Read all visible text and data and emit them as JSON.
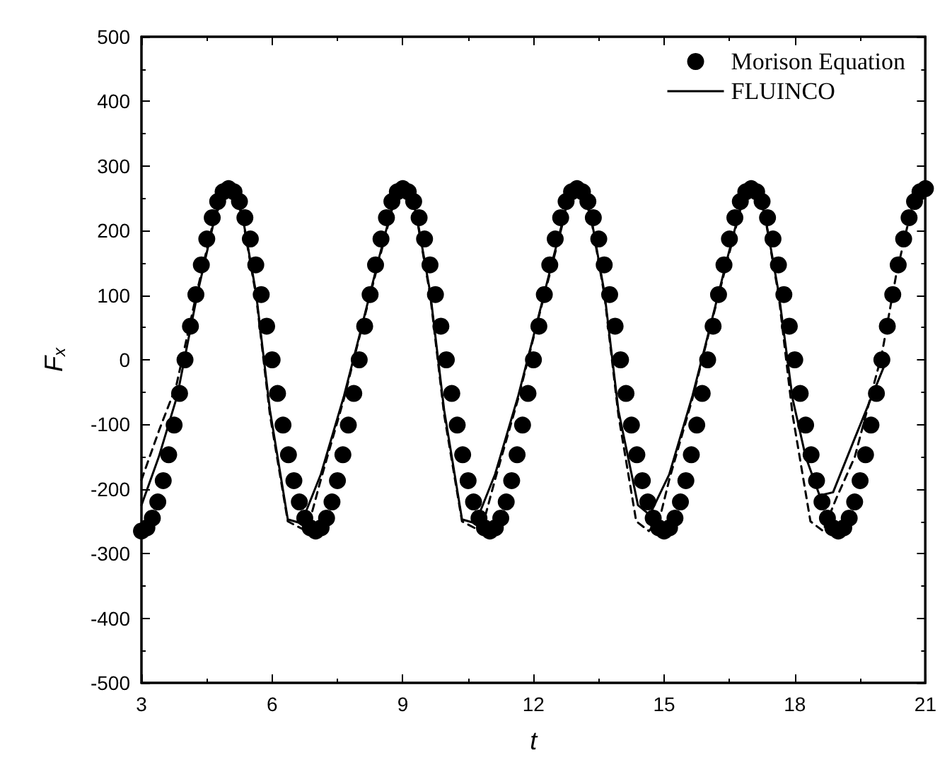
{
  "chart_data": {
    "type": "line",
    "xlabel": "t",
    "ylabel": "F$_{x}$",
    "xlim": [
      3,
      21
    ],
    "xticks": [
      3,
      6,
      9,
      12,
      15,
      18,
      21
    ],
    "ylim": [
      -500,
      500
    ],
    "yticks": [
      -500,
      -400,
      -300,
      -200,
      -100,
      0,
      100,
      200,
      300,
      400,
      500
    ],
    "grid": false,
    "legend": "top right",
    "series": [
      {
        "name": "Morison Equation",
        "type": "scatter",
        "marker": "circle",
        "color": "#000000",
        "x": [
          3,
          3.125,
          3.25,
          3.375,
          3.5,
          3.625,
          3.75,
          3.875,
          4,
          4.125,
          4.25,
          4.375,
          4.5,
          4.625,
          4.75,
          4.875,
          5,
          5.125,
          5.25,
          5.375,
          5.5,
          5.625,
          5.75,
          5.875,
          6,
          6.125,
          6.25,
          6.375,
          6.5,
          6.625,
          6.75,
          6.875,
          7,
          7.125,
          7.25,
          7.375,
          7.5,
          7.625,
          7.75,
          7.875,
          8,
          8.125,
          8.25,
          8.375,
          8.5,
          8.625,
          8.75,
          8.875,
          9,
          9.125,
          9.25,
          9.375,
          9.5,
          9.625,
          9.75,
          9.875,
          10,
          10.125,
          10.25,
          10.375,
          10.5,
          10.625,
          10.75,
          10.875,
          11,
          11.125,
          11.25,
          11.375,
          11.5,
          11.625,
          11.75,
          11.875,
          12,
          12.125,
          12.25,
          12.375,
          12.5,
          12.625,
          12.75,
          12.875,
          13,
          13.125,
          13.25,
          13.375,
          13.5,
          13.625,
          13.75,
          13.875,
          14,
          14.125,
          14.25,
          14.375,
          14.5,
          14.625,
          14.75,
          14.875,
          15,
          15.125,
          15.25,
          15.375,
          15.5,
          15.625,
          15.75,
          15.875,
          16,
          16.125,
          16.25,
          16.375,
          16.5,
          16.625,
          16.75,
          16.875,
          17,
          17.125,
          17.25,
          17.375,
          17.5,
          17.625,
          17.75,
          17.875,
          18,
          18.125,
          18.25,
          18.375,
          18.5,
          18.625,
          18.75,
          18.875,
          19,
          19.125,
          19.25,
          19.375,
          19.5,
          19.625,
          19.75,
          19.875,
          20,
          20.125,
          20.25,
          20.375,
          20.5,
          20.625,
          20.75,
          20.875,
          21
        ],
        "values": [
          -265,
          -260,
          -245,
          -220,
          -187,
          -147,
          -101,
          -52,
          0,
          52,
          101,
          147,
          187,
          220,
          245,
          260,
          265,
          260,
          245,
          220,
          187,
          147,
          101,
          52,
          0,
          -52,
          -101,
          -147,
          -187,
          -220,
          -245,
          -260,
          -265,
          -260,
          -245,
          -220,
          -187,
          -147,
          -101,
          -52,
          0,
          52,
          101,
          147,
          187,
          220,
          245,
          260,
          265,
          260,
          245,
          220,
          187,
          147,
          101,
          52,
          0,
          -52,
          -101,
          -147,
          -187,
          -220,
          -245,
          -260,
          -265,
          -260,
          -245,
          -220,
          -187,
          -147,
          -101,
          -52,
          0,
          52,
          101,
          147,
          187,
          220,
          245,
          260,
          265,
          260,
          245,
          220,
          187,
          147,
          101,
          52,
          0,
          -52,
          -101,
          -147,
          -187,
          -220,
          -245,
          -260,
          -265,
          -260,
          -245,
          -220,
          -187,
          -147,
          -101,
          -52,
          0,
          52,
          101,
          147,
          187,
          220,
          245,
          260,
          265,
          260,
          245,
          220,
          187,
          147,
          101,
          52,
          0,
          -52,
          -101,
          -147,
          -187,
          -220,
          -245,
          -260,
          -265,
          -260,
          -245,
          -220,
          -187,
          -147,
          -101,
          -52,
          0,
          52,
          101,
          147,
          187,
          220,
          245,
          260,
          265
        ]
      },
      {
        "name": "FLUINCO",
        "marker": "none",
        "line_style": "solid",
        "color": "#000000",
        "x": [
          3,
          3.4,
          3.82,
          4.29,
          4.7,
          5,
          5.3,
          5.63,
          5.95,
          6.36,
          6.67,
          7.12,
          7.65,
          8.06,
          8.44,
          8.75,
          9,
          9.3,
          9.63,
          9.95,
          10.36,
          10.67,
          11.12,
          11.65,
          12.06,
          12.44,
          12.75,
          13,
          13.3,
          13.63,
          13.95,
          14.4,
          14.67,
          15.12,
          15.65,
          16.06,
          16.44,
          16.75,
          17,
          17.3,
          17.63,
          17.95,
          18.25,
          18.57,
          18.88,
          19.38,
          20.08
        ],
        "values": [
          -225,
          -150,
          -56,
          104,
          225,
          262,
          230,
          104,
          -78,
          -247,
          -253,
          -177,
          -56,
          52,
          154,
          235,
          262,
          230,
          104,
          -78,
          -247,
          -253,
          -177,
          -56,
          52,
          154,
          235,
          262,
          230,
          104,
          -78,
          -225,
          -240,
          -177,
          -56,
          52,
          154,
          235,
          262,
          230,
          104,
          -60,
          -150,
          -210,
          -205,
          -121,
          -5
        ]
      },
      {
        "marker": "none",
        "line_style": "dashed",
        "color": "#000000",
        "x": [
          3,
          3.4,
          3.8,
          4.29,
          4.7,
          5,
          5.3,
          5.63,
          5.95,
          6.36,
          6.7,
          6.9,
          7.12,
          7.65,
          8.06,
          8.44,
          8.75,
          9,
          9.3,
          9.63,
          9.95,
          10.36,
          10.7,
          10.9,
          11.12,
          11.65,
          12.06,
          12.44,
          12.75,
          13,
          13.3,
          13.63,
          13.95,
          14.36,
          14.65,
          14.9,
          15.12,
          15.65,
          16.06,
          16.44,
          16.75,
          17,
          17.3,
          17.63,
          17.95,
          18.36,
          18.65,
          18.95,
          19.38,
          20,
          20.33,
          20.7,
          21
        ],
        "values": [
          -186,
          -110,
          -40,
          110,
          228,
          258,
          228,
          100,
          -85,
          -250,
          -262,
          -240,
          -185,
          -60,
          50,
          150,
          232,
          258,
          228,
          100,
          -85,
          -250,
          -262,
          -240,
          -185,
          -60,
          50,
          150,
          232,
          258,
          228,
          100,
          -85,
          -250,
          -265,
          -245,
          -185,
          -60,
          50,
          150,
          232,
          258,
          228,
          100,
          -85,
          -250,
          -265,
          -215,
          -150,
          9,
          132,
          240,
          262
        ]
      }
    ]
  }
}
